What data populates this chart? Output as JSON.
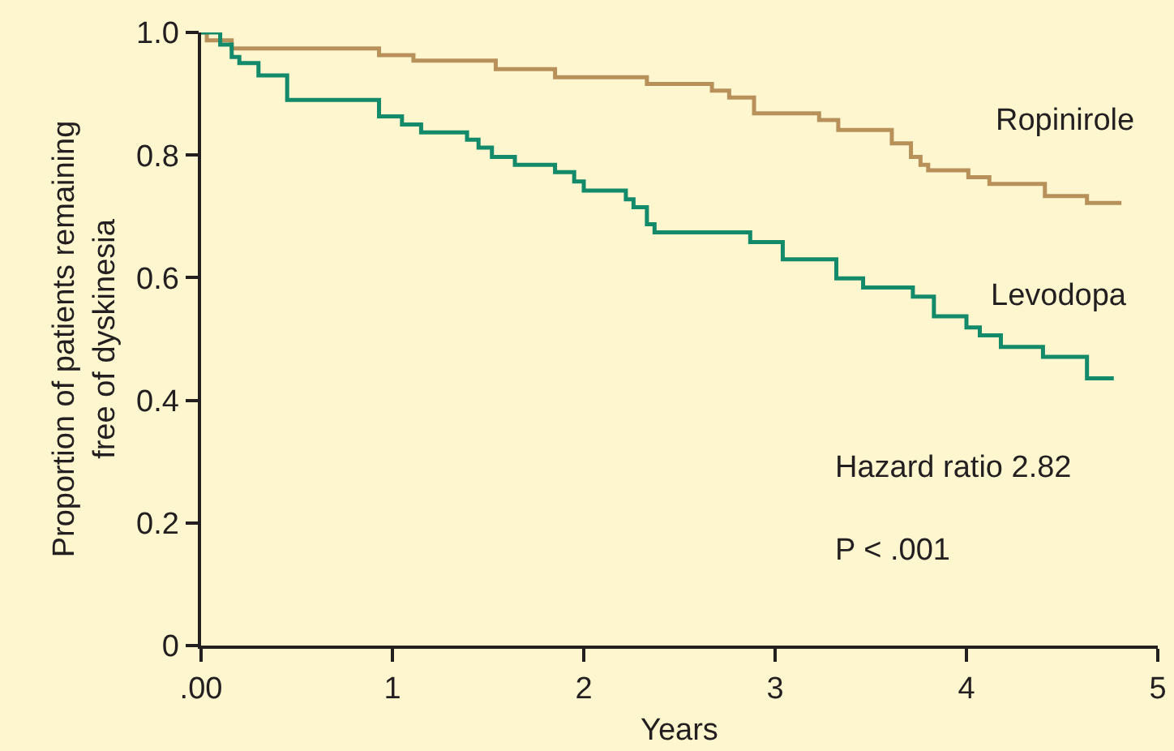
{
  "chart_data": {
    "type": "step",
    "xlabel": "Years",
    "ylabel": "Proportion of patients remaining\nfree of dyskinesia",
    "xlim": [
      0,
      5
    ],
    "xticks": [
      {
        "value": 0,
        "label": ".00"
      },
      1,
      2,
      3,
      4,
      5
    ],
    "ylim": [
      0,
      1
    ],
    "yticks": [
      0,
      0.2,
      0.4,
      0.6,
      0.8,
      {
        "value": 1,
        "label": "1.0"
      }
    ],
    "grid": false,
    "legend": false,
    "marker": "none",
    "line_style": "solid",
    "series": [
      {
        "name": "Ropinirole",
        "color": "#b8905a",
        "x": [
          0,
          0.03,
          0.16,
          0.93,
          1.11,
          1.54,
          1.85,
          2.33,
          2.67,
          2.76,
          2.89,
          3.23,
          3.33,
          3.61,
          3.71,
          3.76,
          3.8,
          4.01,
          4.12,
          4.41,
          4.63,
          4.81
        ],
        "values": [
          1,
          0.987,
          0.974,
          0.963,
          0.954,
          0.94,
          0.927,
          0.916,
          0.905,
          0.894,
          0.868,
          0.857,
          0.841,
          0.819,
          0.797,
          0.784,
          0.775,
          0.764,
          0.753,
          0.733,
          0.722,
          0.722
        ]
      },
      {
        "name": "Levodopa",
        "color": "#138a6a",
        "x": [
          0,
          0.1,
          0.16,
          0.2,
          0.3,
          0.45,
          0.93,
          1.05,
          1.15,
          1.39,
          1.45,
          1.52,
          1.64,
          1.85,
          1.95,
          2.0,
          2.22,
          2.26,
          2.33,
          2.37,
          2.87,
          3.04,
          3.32,
          3.46,
          3.72,
          3.83,
          4.0,
          4.07,
          4.18,
          4.4,
          4.63,
          4.77
        ],
        "values": [
          1,
          0.98,
          0.96,
          0.95,
          0.93,
          0.89,
          0.863,
          0.85,
          0.837,
          0.825,
          0.812,
          0.797,
          0.784,
          0.772,
          0.757,
          0.742,
          0.728,
          0.715,
          0.687,
          0.674,
          0.658,
          0.63,
          0.599,
          0.584,
          0.569,
          0.537,
          0.519,
          0.506,
          0.487,
          0.471,
          0.436,
          0.436
        ]
      }
    ],
    "annotations": [
      "Hazard ratio 2.82",
      "P < .001"
    ]
  }
}
